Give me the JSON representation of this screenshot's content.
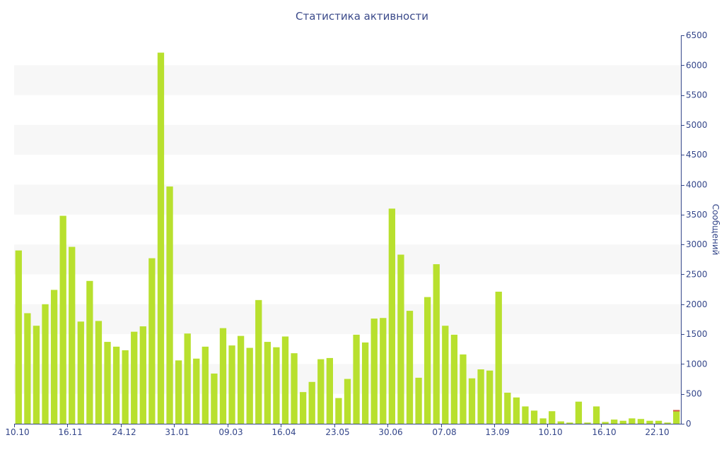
{
  "chart_data": {
    "type": "bar",
    "title": "Статистика активности",
    "ylabel": "Сообщений",
    "xlabel": "",
    "y_axis_side": "right",
    "ylim": [
      0,
      6500
    ],
    "yticks": [
      0,
      500,
      1000,
      1500,
      2000,
      2500,
      3000,
      3500,
      4000,
      4500,
      5000,
      5500,
      6000,
      6500
    ],
    "grid": "alternating horizontal bands",
    "bar_color": "#b8e02e",
    "accent_color": "#d9534f",
    "band_color": "#f7f7f7",
    "axis_color": "#34468a",
    "x_tick_labels": [
      {
        "index": 0,
        "label": "10.10"
      },
      {
        "index": 6,
        "label": "16.11"
      },
      {
        "index": 12,
        "label": "24.12"
      },
      {
        "index": 18,
        "label": "31.01"
      },
      {
        "index": 24,
        "label": "09.03"
      },
      {
        "index": 30,
        "label": "16.04"
      },
      {
        "index": 36,
        "label": "23.05"
      },
      {
        "index": 42,
        "label": "30.06"
      },
      {
        "index": 48,
        "label": "07.08"
      },
      {
        "index": 54,
        "label": "13.09"
      },
      {
        "index": 60,
        "label": "10.10"
      },
      {
        "index": 66,
        "label": "16.10"
      },
      {
        "index": 72,
        "label": "22.10"
      }
    ],
    "series": [
      {
        "values": [
          2900,
          1850,
          1640,
          2000,
          2240,
          3480,
          2960,
          1710,
          2390,
          1720,
          1370,
          1290,
          1230,
          1540,
          1630,
          2770,
          6210,
          3970,
          1060,
          1510,
          1090,
          1290,
          840,
          1600,
          1310,
          1470,
          1270,
          2070,
          1370,
          1280,
          1460,
          1180,
          530,
          700,
          1080,
          1100,
          430,
          750,
          1490,
          1360,
          1760,
          1770,
          3600,
          2830,
          1890,
          770,
          2120,
          2670,
          1640,
          1490,
          1160,
          760,
          910,
          890,
          2210,
          520,
          440,
          290,
          220,
          90,
          210,
          40,
          20,
          370,
          20,
          290,
          30,
          70,
          50,
          90,
          80,
          50,
          50,
          20,
          230
        ]
      }
    ],
    "accent_last_bar": true
  }
}
